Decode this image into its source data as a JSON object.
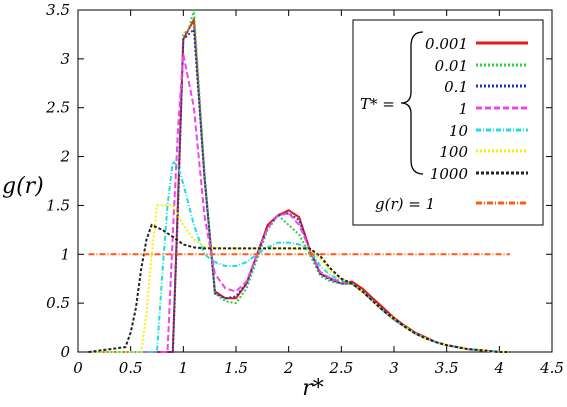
{
  "chart_data": {
    "type": "line",
    "xlabel": "r*",
    "ylabel": "g(r)",
    "xlim": [
      0,
      4.5
    ],
    "ylim": [
      0,
      3.5
    ],
    "xticks": [
      "0",
      "0.5",
      "1",
      "1.5",
      "2",
      "2.5",
      "3",
      "3.5",
      "4",
      "4.5"
    ],
    "yticks": [
      "0",
      "0.5",
      "1",
      "1.5",
      "2",
      "2.5",
      "3",
      "3.5"
    ],
    "grid": false,
    "legend_position": "top-right",
    "legend_group_label": "T* =",
    "series": [
      {
        "name": "0.001",
        "color": "#e41a1c",
        "dash": "solid",
        "x": [
          0.1,
          0.9,
          0.95,
          1.0,
          1.05,
          1.1,
          1.2,
          1.3,
          1.4,
          1.5,
          1.6,
          1.7,
          1.8,
          1.9,
          2.0,
          2.1,
          2.2,
          2.3,
          2.4,
          2.5,
          2.6,
          2.7,
          2.8,
          2.9,
          3.0,
          3.1,
          3.2,
          3.3,
          3.4,
          3.5,
          3.6,
          3.7,
          3.8,
          3.9,
          4.0,
          4.1
        ],
        "y": [
          0,
          0,
          1.6,
          3.2,
          3.3,
          3.4,
          1.8,
          0.62,
          0.55,
          0.55,
          0.7,
          1.0,
          1.3,
          1.4,
          1.45,
          1.38,
          1.05,
          0.8,
          0.75,
          0.7,
          0.72,
          0.65,
          0.55,
          0.45,
          0.35,
          0.27,
          0.2,
          0.15,
          0.1,
          0.07,
          0.05,
          0.03,
          0.02,
          0.01,
          0,
          0
        ]
      },
      {
        "name": "0.01",
        "color": "#2ecc40",
        "dash": "2,2",
        "x": [
          0.1,
          0.9,
          0.95,
          1.0,
          1.05,
          1.1,
          1.2,
          1.3,
          1.4,
          1.5,
          1.6,
          1.7,
          1.8,
          1.9,
          2.0,
          2.1,
          2.2,
          2.3,
          2.4,
          2.5,
          2.6,
          2.7,
          2.8,
          2.9,
          3.0,
          3.1,
          3.2,
          3.3,
          3.4,
          3.5,
          3.6,
          3.7,
          3.8,
          3.9,
          4.0,
          4.1
        ],
        "y": [
          0,
          0,
          1.5,
          3.25,
          3.3,
          3.5,
          1.85,
          0.6,
          0.52,
          0.5,
          0.65,
          0.95,
          1.25,
          1.4,
          1.3,
          1.2,
          1.0,
          0.78,
          0.72,
          0.7,
          0.7,
          0.62,
          0.52,
          0.42,
          0.33,
          0.26,
          0.19,
          0.14,
          0.1,
          0.07,
          0.05,
          0.03,
          0.02,
          0.01,
          0,
          0
        ]
      },
      {
        "name": "0.1",
        "color": "#2233bb",
        "dash": "2,2",
        "x": [
          0.1,
          0.9,
          0.95,
          1.0,
          1.05,
          1.1,
          1.2,
          1.3,
          1.4,
          1.5,
          1.6,
          1.7,
          1.8,
          1.9,
          2.0,
          2.1,
          2.2,
          2.3,
          2.4,
          2.5,
          2.6,
          2.7,
          2.8,
          2.9,
          3.0,
          3.1,
          3.2,
          3.3,
          3.4,
          3.5,
          3.6,
          3.7,
          3.8,
          3.9,
          4.0,
          4.1
        ],
        "y": [
          0,
          0,
          1.5,
          3.2,
          3.25,
          3.3,
          1.8,
          0.6,
          0.55,
          0.57,
          0.7,
          1.0,
          1.28,
          1.4,
          1.42,
          1.35,
          1.05,
          0.8,
          0.74,
          0.7,
          0.7,
          0.62,
          0.53,
          0.43,
          0.34,
          0.26,
          0.19,
          0.14,
          0.1,
          0.07,
          0.05,
          0.03,
          0.02,
          0.01,
          0,
          0
        ]
      },
      {
        "name": "1",
        "color": "#ee44ee",
        "dash": "6,3",
        "x": [
          0.1,
          0.85,
          0.9,
          0.95,
          1.0,
          1.1,
          1.2,
          1.3,
          1.4,
          1.5,
          1.6,
          1.7,
          1.8,
          1.9,
          2.0,
          2.1,
          2.2,
          2.3,
          2.4,
          2.5,
          2.6,
          2.7,
          2.8,
          2.9,
          3.0,
          3.1,
          3.2,
          3.3,
          3.4,
          3.5,
          3.6,
          3.7,
          3.8,
          3.9,
          4.0,
          4.1
        ],
        "y": [
          0,
          0,
          1.2,
          2.3,
          3.05,
          2.5,
          1.4,
          0.8,
          0.65,
          0.62,
          0.72,
          1.0,
          1.27,
          1.4,
          1.42,
          1.3,
          1.05,
          0.82,
          0.75,
          0.72,
          0.7,
          0.62,
          0.52,
          0.42,
          0.33,
          0.26,
          0.19,
          0.14,
          0.1,
          0.07,
          0.05,
          0.03,
          0.02,
          0.01,
          0,
          0
        ]
      },
      {
        "name": "10",
        "color": "#22dddd",
        "dash": "5,2,1,2",
        "x": [
          0.1,
          0.75,
          0.8,
          0.85,
          0.9,
          0.95,
          1.0,
          1.1,
          1.2,
          1.3,
          1.4,
          1.5,
          1.6,
          1.7,
          1.8,
          1.9,
          2.0,
          2.1,
          2.2,
          2.3,
          2.4,
          2.5,
          2.6,
          2.7,
          2.8,
          2.9,
          3.0,
          3.1,
          3.2,
          3.3,
          3.4,
          3.5,
          3.6,
          3.7,
          3.8,
          3.9,
          4.0,
          4.1
        ],
        "y": [
          0,
          0,
          0.8,
          1.5,
          1.95,
          1.9,
          1.72,
          1.3,
          1.0,
          0.92,
          0.88,
          0.88,
          0.92,
          1.0,
          1.07,
          1.12,
          1.12,
          1.1,
          1.05,
          0.88,
          0.78,
          0.74,
          0.7,
          0.62,
          0.52,
          0.42,
          0.33,
          0.26,
          0.19,
          0.14,
          0.1,
          0.07,
          0.05,
          0.03,
          0.02,
          0.01,
          0,
          0
        ]
      },
      {
        "name": "100",
        "color": "#ffee00",
        "dash": "2,2",
        "x": [
          0.1,
          0.6,
          0.65,
          0.7,
          0.75,
          0.8,
          0.9,
          1.0,
          1.1,
          1.2,
          1.4,
          1.6,
          1.8,
          2.0,
          2.2,
          2.3,
          2.4,
          2.5,
          2.6,
          2.7,
          2.8,
          2.9,
          3.0,
          3.1,
          3.2,
          3.3,
          3.4,
          3.5,
          3.6,
          3.7,
          3.8,
          3.9,
          4.0,
          4.1
        ],
        "y": [
          0,
          0,
          0.4,
          1.0,
          1.5,
          1.5,
          1.5,
          1.3,
          1.15,
          1.08,
          1.06,
          1.06,
          1.06,
          1.06,
          1.05,
          0.95,
          0.82,
          0.75,
          0.7,
          0.62,
          0.52,
          0.42,
          0.34,
          0.26,
          0.19,
          0.14,
          0.1,
          0.07,
          0.05,
          0.03,
          0.02,
          0.01,
          0,
          0
        ]
      },
      {
        "name": "1000",
        "color": "#222222",
        "dash": "3,2",
        "x": [
          0.1,
          0.45,
          0.5,
          0.55,
          0.6,
          0.65,
          0.7,
          0.8,
          0.9,
          1.0,
          1.1,
          1.2,
          1.4,
          1.6,
          1.8,
          2.0,
          2.2,
          2.3,
          2.4,
          2.5,
          2.6,
          2.7,
          2.8,
          2.9,
          3.0,
          3.1,
          3.2,
          3.3,
          3.4,
          3.5,
          3.6,
          3.7,
          3.8,
          3.9,
          4.0,
          4.1
        ],
        "y": [
          0,
          0.05,
          0.2,
          0.45,
          0.85,
          1.15,
          1.3,
          1.25,
          1.18,
          1.1,
          1.07,
          1.06,
          1.06,
          1.06,
          1.06,
          1.06,
          1.06,
          0.98,
          0.85,
          0.75,
          0.7,
          0.62,
          0.52,
          0.42,
          0.34,
          0.26,
          0.19,
          0.14,
          0.1,
          0.07,
          0.05,
          0.03,
          0.02,
          0.01,
          0,
          0
        ]
      },
      {
        "name": "g(r) = 1",
        "color": "#ff5a14",
        "dash": "6,2,1,2",
        "x": [
          0.1,
          4.1
        ],
        "y": [
          1,
          1
        ]
      }
    ]
  }
}
